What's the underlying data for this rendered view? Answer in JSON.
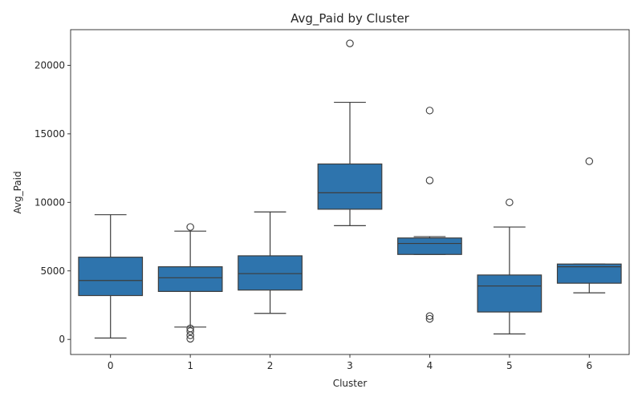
{
  "chart_data": {
    "type": "box",
    "title": "Avg_Paid by Cluster",
    "xlabel": "Cluster",
    "ylabel": "Avg_Paid",
    "ylim": [
      -1100,
      22600
    ],
    "yticks": [
      0,
      5000,
      10000,
      15000,
      20000
    ],
    "box_color": "#2e74ad",
    "line_color": "#3d3d3d",
    "grid": false,
    "categories": [
      "0",
      "1",
      "2",
      "3",
      "4",
      "5",
      "6"
    ],
    "boxes": [
      {
        "category": "0",
        "whisker_low": 100,
        "q1": 3200,
        "median": 4300,
        "q3": 6000,
        "whisker_high": 9100,
        "outliers": []
      },
      {
        "category": "1",
        "whisker_low": 900,
        "q1": 3500,
        "median": 4500,
        "q3": 5300,
        "whisker_high": 7900,
        "outliers": [
          8200,
          800,
          600,
          300,
          50
        ]
      },
      {
        "category": "2",
        "whisker_low": 1900,
        "q1": 3600,
        "median": 4800,
        "q3": 6100,
        "whisker_high": 9300,
        "outliers": []
      },
      {
        "category": "3",
        "whisker_low": 8300,
        "q1": 9500,
        "median": 10700,
        "q3": 12800,
        "whisker_high": 17300,
        "outliers": [
          21600
        ]
      },
      {
        "category": "4",
        "whisker_low": 6200,
        "q1": 6200,
        "median": 7000,
        "q3": 7400,
        "whisker_high": 7500,
        "outliers": [
          16700,
          11600,
          1700,
          1500
        ]
      },
      {
        "category": "5",
        "whisker_low": 400,
        "q1": 2000,
        "median": 3900,
        "q3": 4700,
        "whisker_high": 8200,
        "outliers": [
          10000
        ]
      },
      {
        "category": "6",
        "whisker_low": 3400,
        "q1": 4100,
        "median": 5300,
        "q3": 5500,
        "whisker_high": 5500,
        "outliers": [
          13000
        ]
      }
    ]
  }
}
